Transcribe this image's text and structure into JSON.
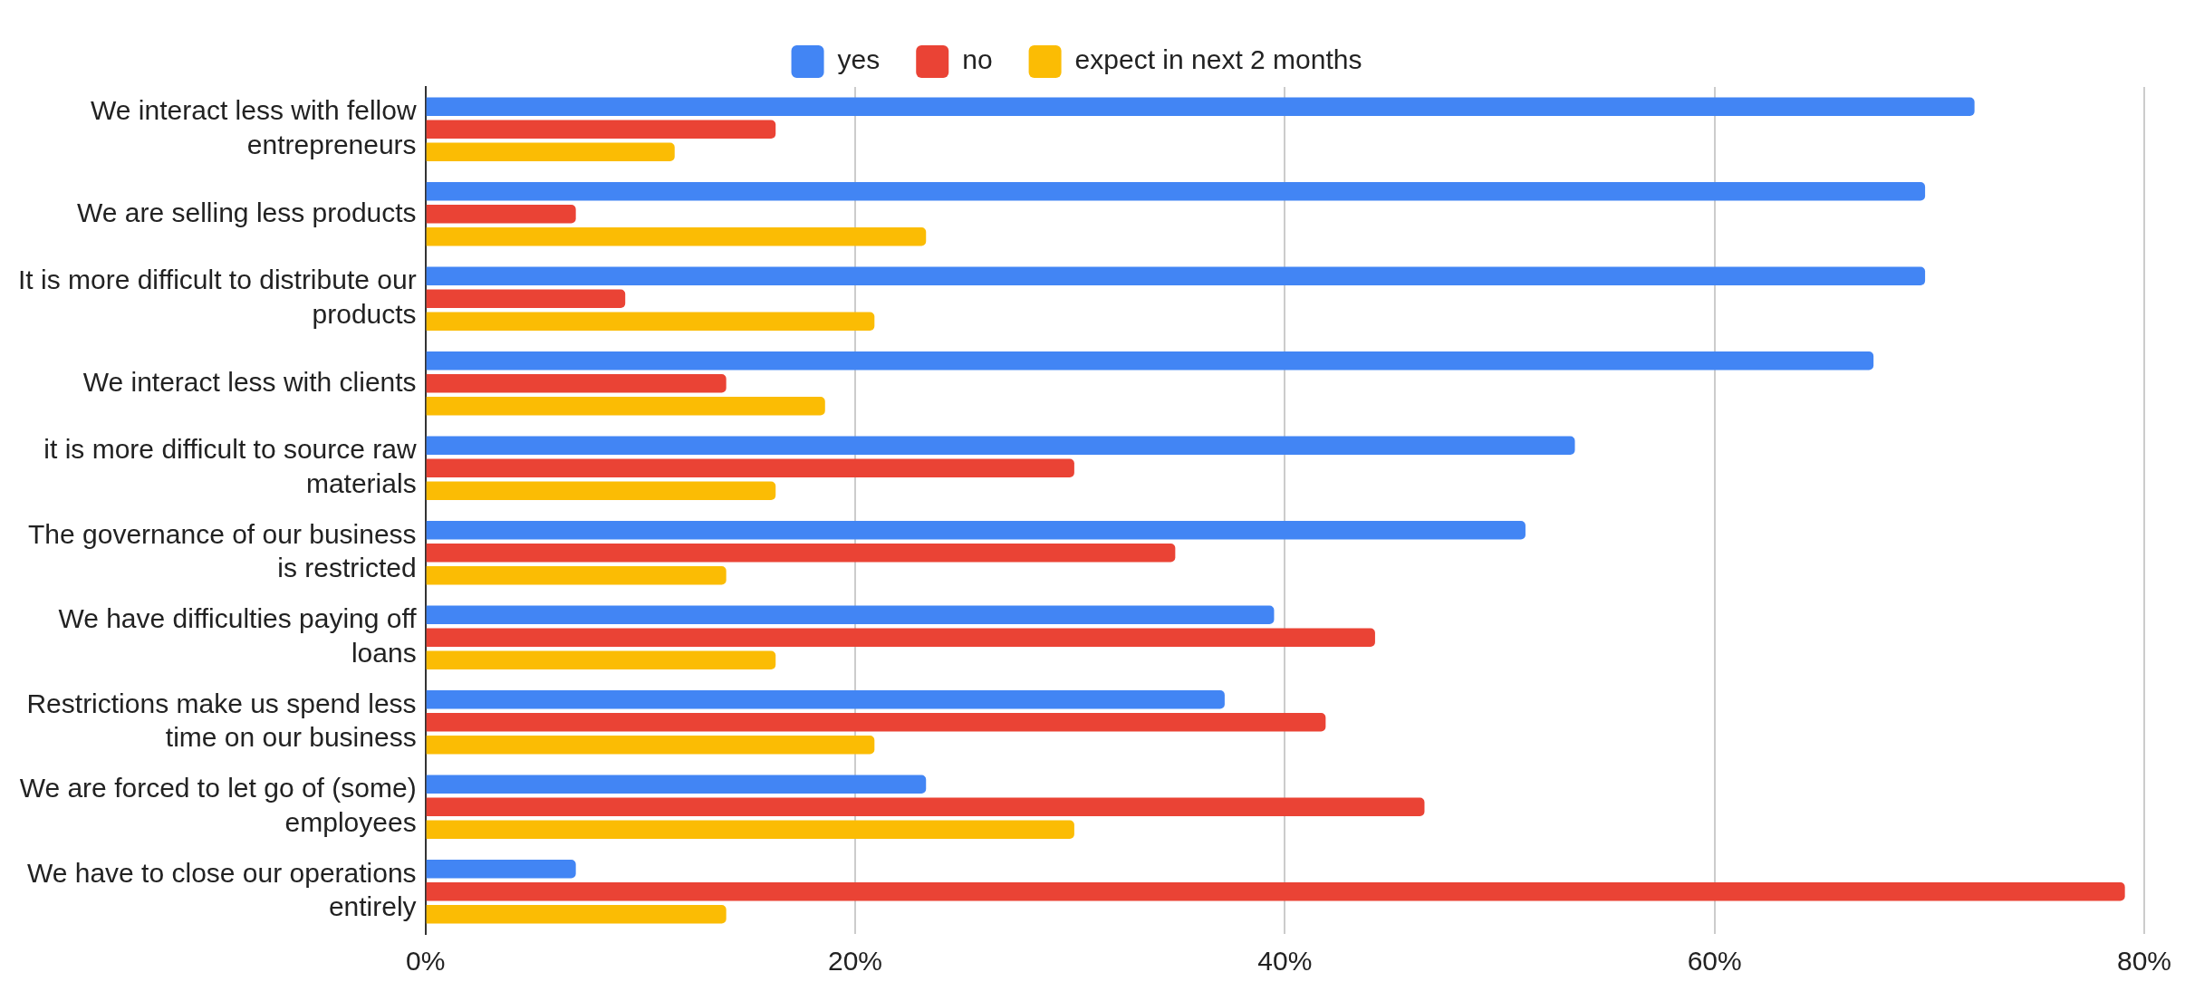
{
  "chart_data": {
    "type": "bar",
    "orientation": "horizontal",
    "categories": [
      "We interact less with fellow entrepreneurs",
      "We are selling less products",
      "It is more difficult to distribute our products",
      "We interact less with clients",
      "it is more difficult to source raw materials",
      "The governance of our business is restricted",
      "We have difficulties paying off loans",
      "Restrictions make us spend less time on our business",
      "We are forced to let go of (some) employees",
      "We have to close our operations entirely"
    ],
    "series": [
      {
        "name": "yes",
        "color": "#4285f4",
        "values": [
          72.1,
          69.8,
          69.8,
          67.4,
          53.5,
          51.2,
          39.5,
          37.2,
          23.3,
          7.0
        ]
      },
      {
        "name": "no",
        "color": "#ea4335",
        "values": [
          16.3,
          7.0,
          9.3,
          14.0,
          30.2,
          34.9,
          44.2,
          41.9,
          46.5,
          79.1
        ]
      },
      {
        "name": "expect in next 2 months",
        "color": "#fbbc04",
        "values": [
          11.6,
          23.3,
          20.9,
          18.6,
          16.3,
          14.0,
          16.3,
          20.9,
          30.2,
          14.0
        ]
      }
    ],
    "xlim": [
      0,
      80
    ],
    "xticks": [
      {
        "value": 0,
        "label": "0%"
      },
      {
        "value": 20,
        "label": "20%"
      },
      {
        "value": 40,
        "label": "40%"
      },
      {
        "value": 60,
        "label": "60%"
      },
      {
        "value": 80,
        "label": "80%"
      }
    ],
    "grid": "x",
    "legend": "top"
  }
}
